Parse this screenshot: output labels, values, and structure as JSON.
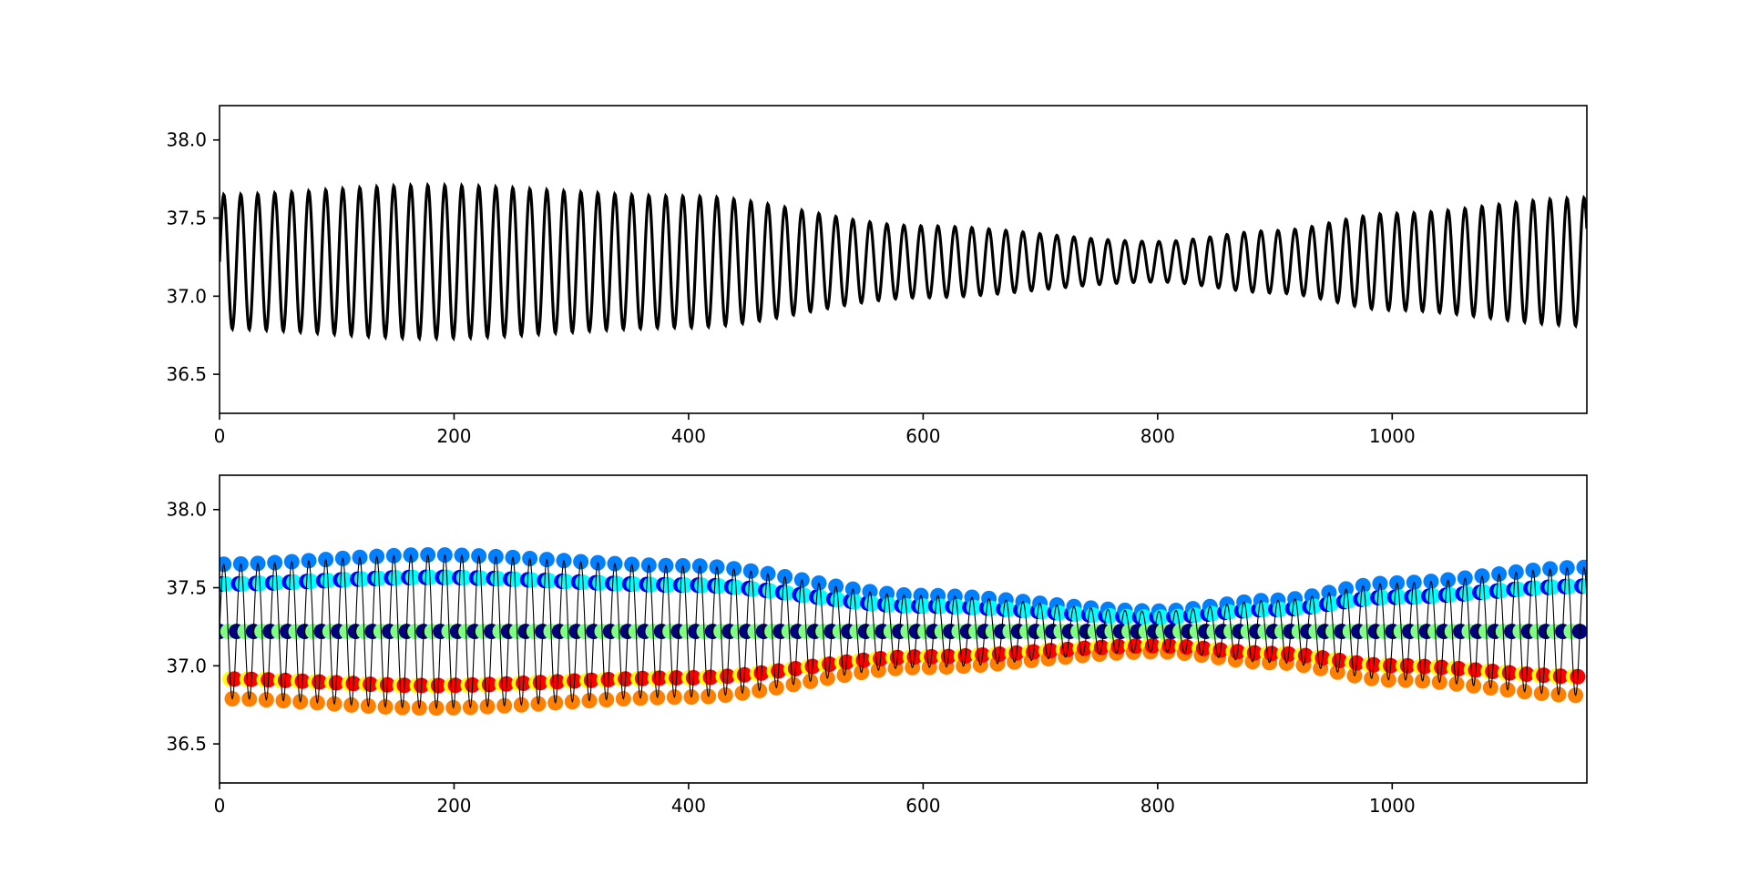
{
  "chart_data": [
    {
      "type": "line",
      "title": "",
      "xlabel": "",
      "ylabel": "",
      "xlim": [
        0,
        1166
      ],
      "ylim": [
        36.25,
        38.22
      ],
      "xticks": [
        0,
        200,
        400,
        600,
        800,
        1000
      ],
      "xtick_labels": [
        "0",
        "200",
        "400",
        "600",
        "800",
        "1000"
      ],
      "yticks": [
        36.5,
        37.0,
        37.5,
        38.0
      ],
      "ytick_labels": [
        "36.5",
        "37.0",
        "37.5",
        "38.0"
      ],
      "grid": false,
      "series": [
        {
          "style": "line",
          "color": "#000000",
          "model": {
            "mean": 37.22,
            "daily_period": 14.5,
            "x_start": 0,
            "x_end": 1166,
            "sample_step": 0.5,
            "amplitude_keypoints": [
              [
                0,
                0.43
              ],
              [
                180,
                0.49
              ],
              [
                400,
                0.42
              ],
              [
                600,
                0.23
              ],
              [
                800,
                0.13
              ],
              [
                900,
                0.2
              ],
              [
                1000,
                0.31
              ],
              [
                1166,
                0.41
              ]
            ],
            "phase_at_x0_deg": 0
          }
        }
      ]
    },
    {
      "type": "scatter",
      "title": "",
      "xlabel": "",
      "ylabel": "",
      "xlim": [
        0,
        1166
      ],
      "ylim": [
        36.25,
        38.22
      ],
      "xticks": [
        0,
        200,
        400,
        600,
        800,
        1000
      ],
      "xtick_labels": [
        "0",
        "200",
        "400",
        "600",
        "800",
        "1000"
      ],
      "yticks": [
        36.5,
        37.0,
        37.5,
        38.0
      ],
      "ytick_labels": [
        "36.5",
        "37.0",
        "37.5",
        "38.0"
      ],
      "grid": false,
      "colormap": "jet",
      "color_by": "phase of the oscillation cycle",
      "series": [
        {
          "style": "line",
          "color": "#000000",
          "same_signal_as_chart": 0
        },
        {
          "style": "scatter",
          "marker": "circle",
          "points_per_cycle": 8,
          "x_sample_step": 1.8125,
          "colormap": "jet",
          "color_value_range": [
            0,
            1
          ],
          "signal_same_as_chart": 0
        }
      ]
    }
  ],
  "colors": {
    "line": "#000000",
    "background": "#ffffff",
    "jet_stops": [
      "#00007f",
      "#0000ff",
      "#007fff",
      "#00ffff",
      "#7fff7f",
      "#ffff00",
      "#ff7f00",
      "#ff0000",
      "#7f0000"
    ]
  }
}
